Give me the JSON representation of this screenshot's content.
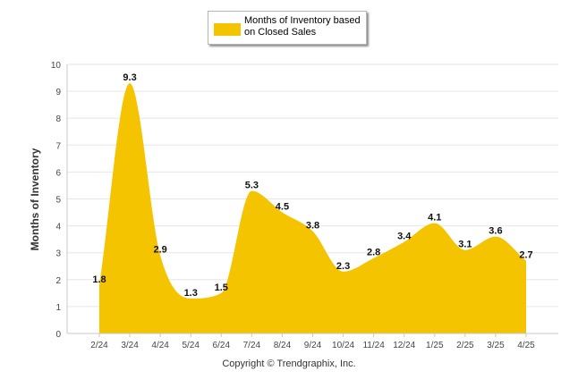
{
  "chart_data": {
    "type": "area",
    "categories": [
      "2/24",
      "3/24",
      "4/24",
      "5/24",
      "6/24",
      "7/24",
      "8/24",
      "9/24",
      "10/24",
      "11/24",
      "12/24",
      "1/25",
      "2/25",
      "3/25",
      "4/25"
    ],
    "series": [
      {
        "name": "Months of Inventory based on Closed Sales",
        "values": [
          1.8,
          9.3,
          2.9,
          1.3,
          1.5,
          5.3,
          4.5,
          3.8,
          2.3,
          2.8,
          3.4,
          4.1,
          3.1,
          3.6,
          2.7
        ],
        "color": "#f5c400"
      }
    ],
    "data_labels": [
      "1.8",
      "9.3",
      "2.9",
      "1.3",
      "1.5",
      "5.3",
      "4.5",
      "3.8",
      "2.3",
      "2.8",
      "3.4",
      "4.1",
      "3.1",
      "3.6",
      "2.7"
    ],
    "ylabel": "Months of Inventory",
    "xlabel": "",
    "ylim": [
      0,
      10
    ],
    "yticks": [
      "0",
      "1",
      "2",
      "3",
      "4",
      "5",
      "6",
      "7",
      "8",
      "9",
      "10"
    ],
    "grid": true,
    "legend_position": "top-center",
    "smooth": true
  },
  "legend": {
    "label": "Months of Inventory based on Closed Sales"
  },
  "footer": {
    "copyright": "Copyright © Trendgraphix, Inc."
  }
}
